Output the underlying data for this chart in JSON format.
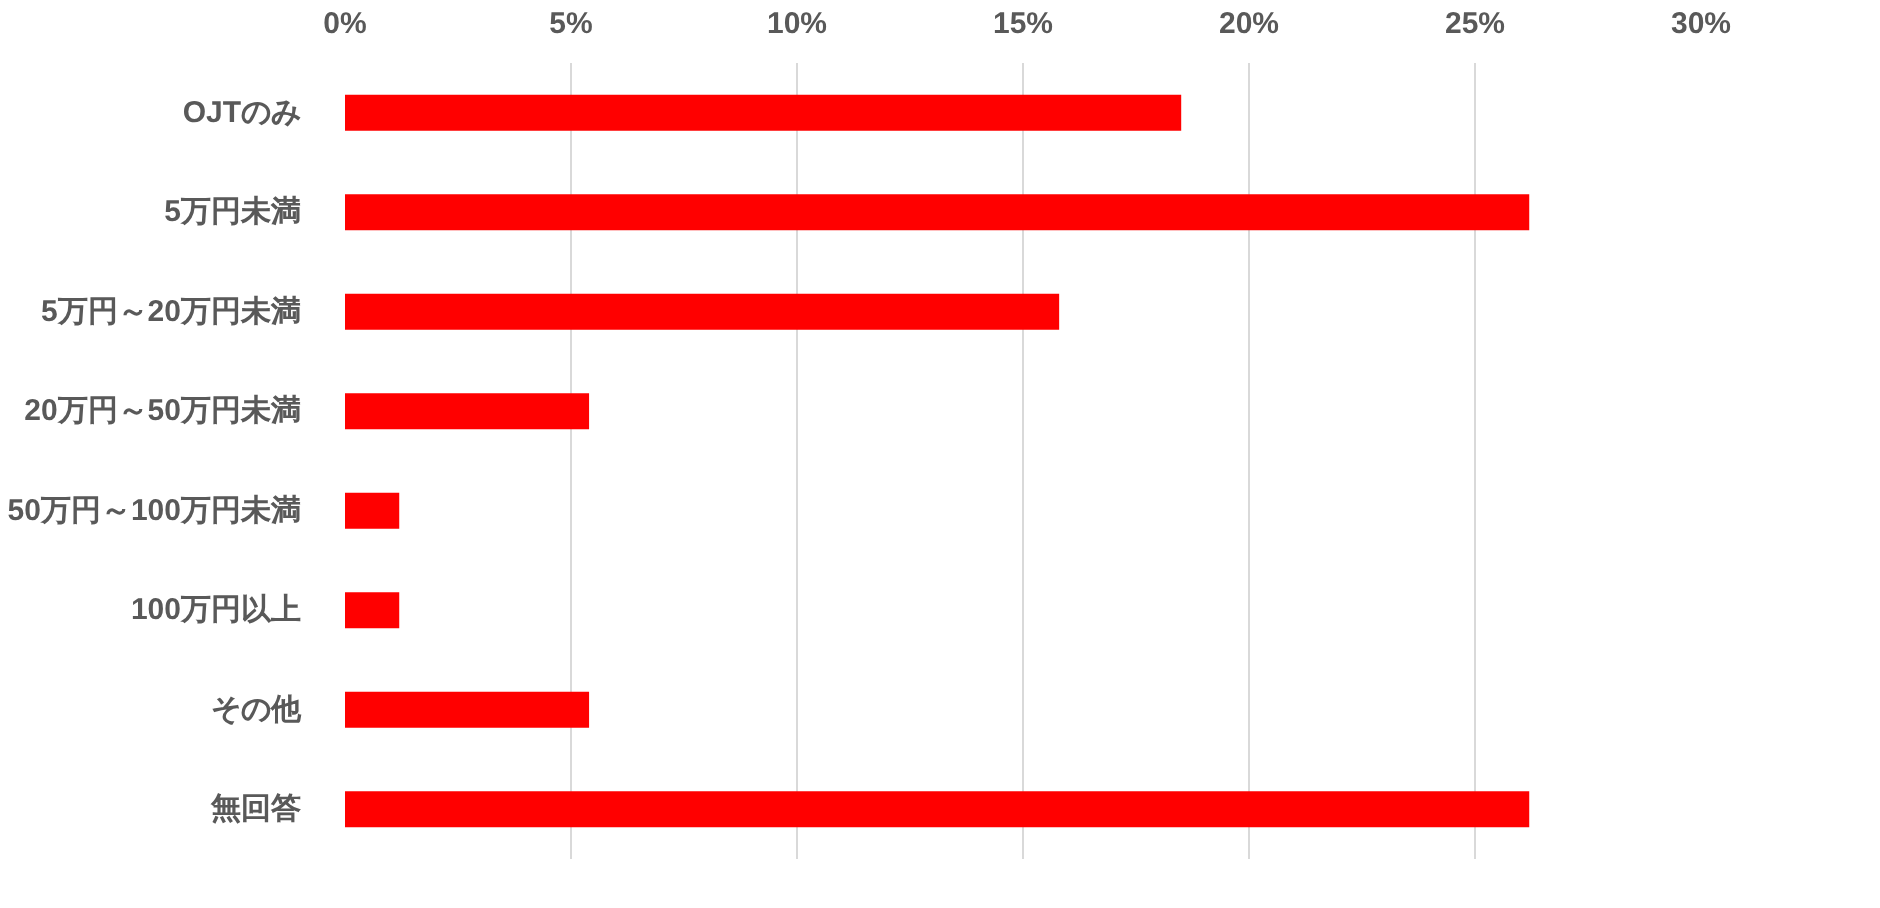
{
  "chart_data": {
    "type": "bar",
    "orientation": "horizontal",
    "categories": [
      "OJTのみ",
      "5万円未満",
      "5万円～20万円未満",
      "20万円～50万円未満",
      "50万円～100万円未満",
      "100万円以上",
      "その他",
      "無回答"
    ],
    "values": [
      18.5,
      26.2,
      15.8,
      5.4,
      1.2,
      1.2,
      5.4,
      26.2
    ],
    "color": "#ff0000",
    "xlim": [
      0,
      30
    ],
    "xticks": [
      {
        "value": 0,
        "label": "0%"
      },
      {
        "value": 5,
        "label": "5%"
      },
      {
        "value": 10,
        "label": "10%"
      },
      {
        "value": 15,
        "label": "15%"
      },
      {
        "value": 20,
        "label": "20%"
      },
      {
        "value": 25,
        "label": "25%"
      },
      {
        "value": 30,
        "label": "30%"
      }
    ],
    "grid": "x"
  }
}
